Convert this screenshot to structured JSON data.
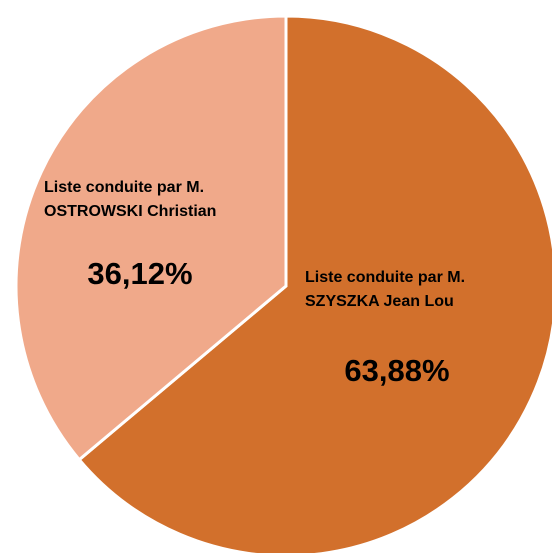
{
  "chart_data": {
    "type": "pie",
    "categories": [
      "Liste conduite par M.\nSZYSZKA Jean Lou",
      "Liste conduite par M.\nOSTROWSKI Christian"
    ],
    "values": [
      63.88,
      36.12
    ],
    "value_labels": [
      "63,88%",
      "36,12%"
    ],
    "colors": [
      "#d2702c",
      "#f0a98a"
    ]
  }
}
